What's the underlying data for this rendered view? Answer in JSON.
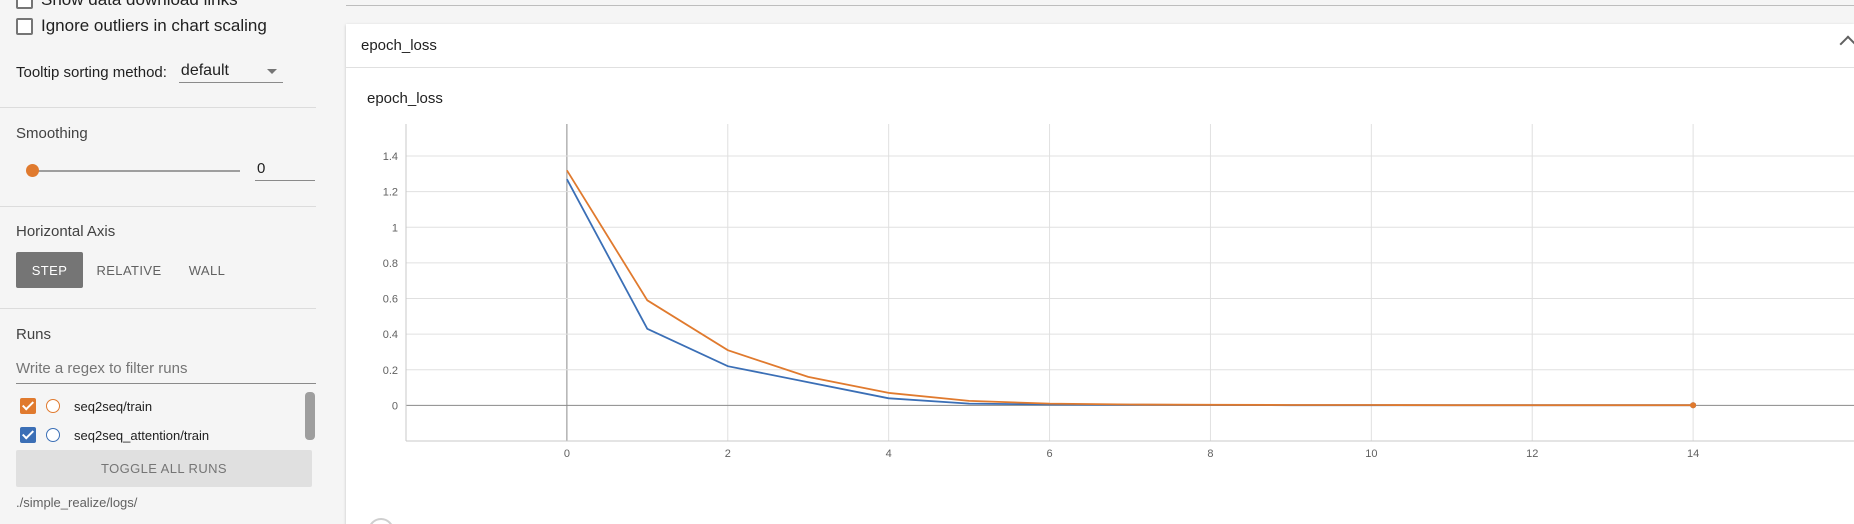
{
  "sidebar": {
    "show_download_links": {
      "label": "Show data download links",
      "checked": false
    },
    "ignore_outliers": {
      "label": "Ignore outliers in chart scaling",
      "checked": false
    },
    "tooltip_sorting": {
      "label": "Tooltip sorting method:",
      "value": "default"
    },
    "smoothing": {
      "title": "Smoothing",
      "value": "0"
    },
    "horizontal_axis": {
      "title": "Horizontal Axis",
      "options": [
        "STEP",
        "RELATIVE",
        "WALL"
      ],
      "selected": "STEP"
    },
    "runs": {
      "title": "Runs",
      "filter_placeholder": "Write a regex to filter runs",
      "items": [
        {
          "label": "seq2seq/train",
          "color": "#e07a2e",
          "checked": true
        },
        {
          "label": "seq2seq_attention/train",
          "color": "#3b6fb6",
          "checked": true
        }
      ],
      "toggle_label": "TOGGLE ALL RUNS",
      "logdir": "./simple_realize/logs/"
    }
  },
  "card": {
    "header_title": "epoch_loss"
  },
  "chart_data": {
    "type": "line",
    "title": "epoch_loss",
    "xlabel": "",
    "ylabel": "",
    "xlim": [
      -2,
      16
    ],
    "ylim": [
      -0.2,
      1.58
    ],
    "x_ticks": [
      0,
      2,
      4,
      6,
      8,
      10,
      12,
      14
    ],
    "y_ticks": [
      0,
      0.2,
      0.4,
      0.6,
      0.8,
      1,
      1.2,
      1.4
    ],
    "grid": true,
    "series": [
      {
        "name": "seq2seq_attention/train",
        "color": "#3b6fb6",
        "x": [
          0,
          1,
          2,
          3,
          4,
          5,
          6,
          7,
          8,
          9,
          10,
          11,
          12,
          13,
          14
        ],
        "y": [
          1.27,
          0.43,
          0.22,
          0.13,
          0.04,
          0.01,
          0.005,
          0.003,
          0.002,
          0.001,
          0.001,
          0.001,
          0.001,
          0.001,
          0.001
        ]
      },
      {
        "name": "seq2seq/train",
        "color": "#e07a2e",
        "x": [
          0,
          1,
          2,
          3,
          4,
          5,
          6,
          7,
          8,
          9,
          10,
          11,
          12,
          13,
          14
        ],
        "y": [
          1.32,
          0.59,
          0.31,
          0.16,
          0.07,
          0.025,
          0.01,
          0.005,
          0.003,
          0.002,
          0.002,
          0.001,
          0.001,
          0.001,
          0.001
        ]
      }
    ]
  }
}
